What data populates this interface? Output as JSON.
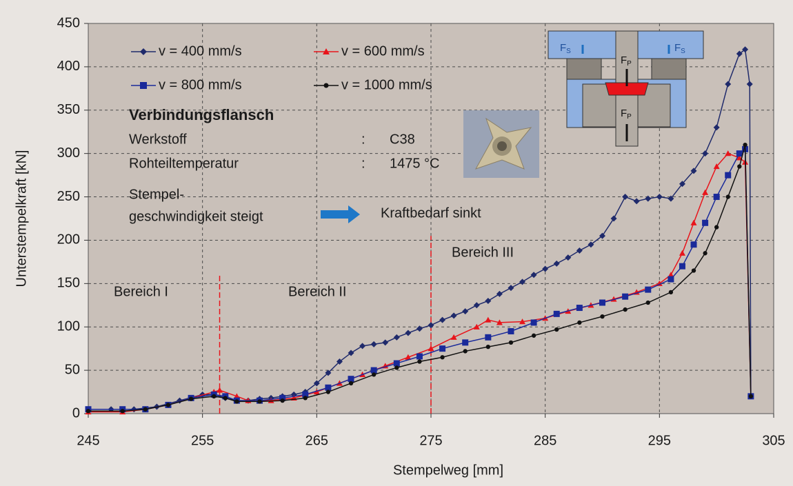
{
  "chart_data": {
    "type": "line",
    "x_label": "Stempelweg [mm]",
    "y_label": "Unterstempelkraft [kN]",
    "xlim": [
      245,
      305
    ],
    "xticks": [
      245,
      255,
      265,
      275,
      285,
      295,
      305
    ],
    "ylim": [
      0,
      450
    ],
    "yticks": [
      0,
      50,
      100,
      150,
      200,
      250,
      300,
      350,
      400,
      450
    ],
    "grid": true,
    "series": [
      {
        "name": "v = 400 mm/s",
        "color": "#1f2a6b",
        "marker": "diamond",
        "x": [
          245,
          247,
          249,
          251,
          253,
          255,
          256,
          257,
          258,
          259,
          260,
          261,
          262,
          263,
          264,
          265,
          266,
          267,
          268,
          269,
          270,
          271,
          272,
          273,
          274,
          275,
          276,
          277,
          278,
          279,
          280,
          281,
          282,
          283,
          284,
          285,
          286,
          287,
          288,
          289,
          290,
          291,
          292,
          293,
          294,
          295,
          296,
          297,
          298,
          299,
          300,
          301,
          302,
          302.5,
          302.9,
          303
        ],
        "values": [
          5,
          5,
          5,
          8,
          15,
          22,
          22,
          18,
          15,
          15,
          17,
          18,
          20,
          22,
          25,
          35,
          47,
          60,
          70,
          78,
          80,
          82,
          88,
          93,
          98,
          102,
          108,
          113,
          118,
          125,
          130,
          138,
          145,
          152,
          160,
          167,
          173,
          180,
          188,
          195,
          205,
          225,
          250,
          245,
          248,
          250,
          248,
          265,
          280,
          300,
          330,
          380,
          415,
          420,
          380,
          20
        ]
      },
      {
        "name": "v = 600 mm/s",
        "color": "#e8141b",
        "marker": "triangle",
        "x": [
          245,
          248,
          250,
          252,
          254,
          256,
          256.5,
          258,
          259,
          261,
          263,
          265,
          267,
          269,
          271,
          273,
          275,
          277,
          279,
          280,
          281,
          283,
          285,
          287,
          289,
          291,
          293,
          295,
          296,
          297,
          298,
          299,
          300,
          301,
          302,
          302.5,
          303
        ],
        "values": [
          2,
          2,
          5,
          10,
          18,
          25,
          27,
          20,
          15,
          15,
          18,
          25,
          35,
          45,
          55,
          65,
          75,
          88,
          100,
          108,
          105,
          106,
          110,
          118,
          125,
          132,
          140,
          150,
          160,
          185,
          220,
          255,
          285,
          300,
          295,
          290,
          20
        ]
      },
      {
        "name": "v = 800 mm/s",
        "color": "#1a2a9a",
        "marker": "square",
        "x": [
          245,
          248,
          250,
          252,
          254,
          256,
          257,
          258,
          260,
          262,
          264,
          266,
          268,
          270,
          272,
          274,
          276,
          278,
          280,
          282,
          284,
          286,
          288,
          290,
          292,
          294,
          296,
          297,
          298,
          299,
          300,
          301,
          302,
          302.5,
          303
        ],
        "values": [
          5,
          5,
          5,
          10,
          18,
          22,
          20,
          15,
          15,
          18,
          22,
          30,
          40,
          50,
          58,
          66,
          75,
          82,
          88,
          95,
          105,
          115,
          122,
          128,
          135,
          143,
          155,
          170,
          195,
          220,
          250,
          275,
          300,
          305,
          20
        ]
      },
      {
        "name": "v = 1000 mm/s",
        "color": "#111111",
        "marker": "circle",
        "x": [
          245,
          248,
          250,
          252,
          254,
          256,
          257,
          258,
          260,
          262,
          264,
          266,
          268,
          270,
          272,
          274,
          276,
          278,
          280,
          282,
          284,
          286,
          288,
          290,
          292,
          294,
          296,
          298,
          299,
          300,
          301,
          302,
          302.5,
          303
        ],
        "values": [
          3,
          3,
          5,
          10,
          17,
          20,
          18,
          14,
          14,
          15,
          18,
          25,
          35,
          45,
          53,
          60,
          65,
          72,
          77,
          82,
          90,
          97,
          105,
          112,
          120,
          128,
          140,
          165,
          185,
          215,
          250,
          285,
          310,
          20
        ]
      }
    ],
    "dividers": [
      {
        "x": 256.5,
        "y": 160
      },
      {
        "x": 275,
        "y": 205
      }
    ],
    "annotations": {
      "part": "Verbindungsflansch",
      "material_label": "Werkstoff",
      "material_sep": ":",
      "material": "C38",
      "temp_label": "Rohteiltemperatur",
      "temp_sep": ":",
      "temp": "1475 °C",
      "cause_1": "Stempel-",
      "cause_2": "geschwindigkeit steigt",
      "effect": "Kraftbedarf sinkt",
      "regions": [
        "Bereich I",
        "Bereich II",
        "Bereich III"
      ],
      "forces": [
        {
          "main": "F",
          "sub": "S"
        },
        {
          "main": "F",
          "sub": "S"
        },
        {
          "main": "F",
          "sub": "P"
        },
        {
          "main": "F",
          "sub": "P"
        }
      ]
    }
  }
}
